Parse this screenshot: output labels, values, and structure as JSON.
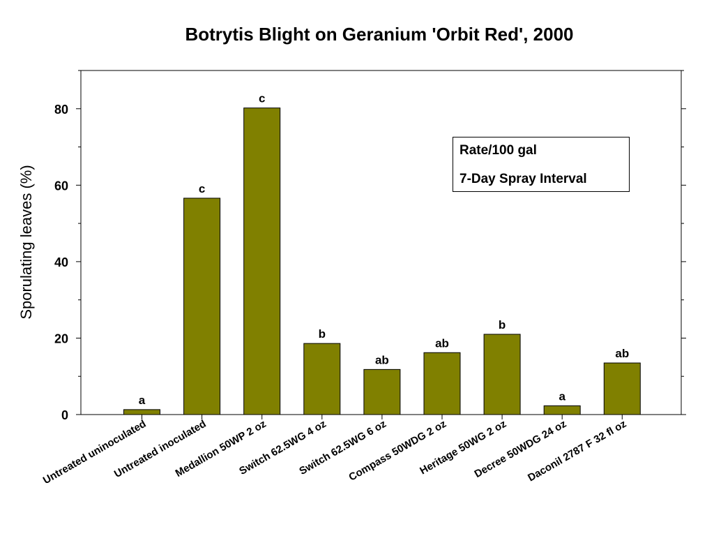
{
  "chart_data": {
    "type": "bar",
    "title": "Botrytis Blight on Geranium 'Orbit Red', 2000",
    "xlabel": "",
    "ylabel": "Sporulating leaves (%)",
    "ylim": [
      0,
      90
    ],
    "yticks": [
      0,
      20,
      40,
      60,
      80
    ],
    "categories": [
      "Untreated uninoculated",
      "Untreated inoculated",
      "Medallion 50WP 2 oz",
      "Switch 62.5WG 4 oz",
      "Switch 62.5WG 6 oz",
      "Compass 50WDG 2 oz",
      "Heritage 50WG 2 oz",
      "Decree 50WDG 24 oz",
      "Daconil 2787 F 32 fl oz"
    ],
    "values": [
      1.3,
      56.6,
      80.2,
      18.6,
      11.8,
      16.2,
      21.0,
      2.3,
      13.5
    ],
    "letters": [
      "a",
      "c",
      "c",
      "b",
      "ab",
      "ab",
      "b",
      "a",
      "ab"
    ],
    "bar_color": "#808000",
    "legend": {
      "position": "top-right",
      "lines": [
        "Rate/100 gal",
        "7-Day Spray Interval"
      ]
    },
    "grid": false
  }
}
